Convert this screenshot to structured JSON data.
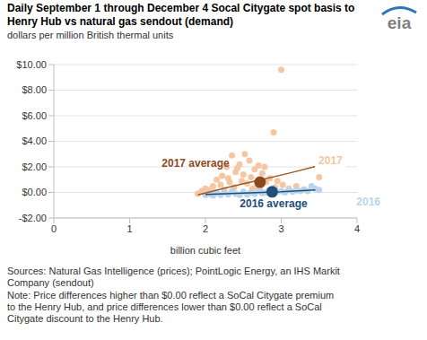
{
  "chart_data": {
    "type": "scatter",
    "title": "Daily September 1 through December 4 Socal Citygate spot basis to\nHenry Hub vs natural gas sendout (demand)",
    "subtitle": "dollars per million British thermal units",
    "logo": "eia",
    "x_label": "billion cubic feet",
    "xlim": [
      0,
      4
    ],
    "xticks": [
      0,
      1,
      2,
      3,
      4
    ],
    "ylim": [
      -2,
      10
    ],
    "yticks": [
      {
        "value": -2,
        "label": "-$2.00"
      },
      {
        "value": 0,
        "label": "$0.00"
      },
      {
        "value": 2,
        "label": "$2.00"
      },
      {
        "value": 4,
        "label": "$4.00"
      },
      {
        "value": 6,
        "label": "$6.00"
      },
      {
        "value": 8,
        "label": "$8.00"
      },
      {
        "value": 10,
        "label": "$10.00"
      }
    ],
    "grid": true,
    "series": [
      {
        "name": "2017",
        "color": "#f6c6a2",
        "name_at": [
          3.65,
          2.5
        ],
        "x": [
          1.9,
          1.95,
          2.0,
          2.05,
          2.1,
          2.12,
          2.15,
          2.2,
          2.22,
          2.25,
          2.28,
          2.3,
          2.32,
          2.35,
          2.38,
          2.4,
          2.42,
          2.45,
          2.48,
          2.5,
          2.52,
          2.55,
          2.58,
          2.6,
          2.62,
          2.65,
          2.68,
          2.7,
          2.72,
          2.75,
          2.78,
          2.8,
          2.85,
          2.9,
          2.92,
          2.95,
          3.0,
          3.02,
          3.1,
          3.2,
          3.3,
          3.5
        ],
        "values": [
          -0.1,
          0.1,
          0.3,
          0.2,
          0.5,
          0.0,
          1.0,
          0.6,
          1.3,
          0.2,
          2.0,
          1.1,
          0.8,
          2.9,
          0.4,
          1.6,
          1.9,
          2.2,
          0.9,
          1.4,
          3.0,
          0.7,
          2.5,
          1.2,
          0.3,
          1.8,
          0.5,
          2.1,
          0.2,
          1.5,
          2.0,
          0.8,
          1.1,
          4.7,
          0.4,
          0.9,
          9.6,
          0.6,
          0.3,
          0.5,
          0.2,
          1.2
        ],
        "trend": {
          "color": "#9a5a2c",
          "x": [
            1.9,
            2.3,
            2.7,
            3.1,
            3.5
          ],
          "values": [
            -0.2,
            0.4,
            0.95,
            1.5,
            2.1
          ]
        },
        "average": {
          "label": "2017 average",
          "color": "#8c4a1c",
          "x": 2.72,
          "y": 0.8,
          "label_at": [
            1.87,
            2.3
          ]
        }
      },
      {
        "name": "2016",
        "color": "#b9d4ec",
        "name_at": [
          4.15,
          -0.75
        ],
        "x": [
          2.0,
          2.05,
          2.1,
          2.15,
          2.2,
          2.25,
          2.3,
          2.35,
          2.4,
          2.45,
          2.5,
          2.55,
          2.6,
          2.65,
          2.7,
          2.75,
          2.8,
          2.85,
          2.9,
          2.95,
          3.0,
          3.05,
          3.1,
          3.15,
          3.2,
          3.25,
          3.3,
          3.35,
          3.4,
          3.45,
          3.5
        ],
        "values": [
          -0.2,
          -0.1,
          -0.25,
          -0.05,
          -0.2,
          0.0,
          -0.15,
          0.1,
          -0.1,
          -0.2,
          0.05,
          -0.15,
          0.0,
          -0.1,
          0.1,
          -0.05,
          0.0,
          0.15,
          -0.1,
          0.05,
          0.1,
          0.0,
          0.2,
          0.05,
          0.15,
          0.1,
          0.25,
          0.1,
          0.5,
          0.3,
          0.2
        ],
        "trend": {
          "color": "#1f4e79",
          "x": [
            2.0,
            2.5,
            3.0,
            3.45
          ],
          "values": [
            -0.15,
            -0.05,
            0.05,
            0.2
          ]
        },
        "average": {
          "label": "2016 average",
          "color": "#1f4e79",
          "x": 2.88,
          "y": 0.05,
          "label_at": [
            2.9,
            -0.85
          ]
        }
      }
    ],
    "sources": "Sources: Natural Gas Intelligence (prices); PointLogic Energy, an IHS Markit\nCompany (sendout)",
    "note": "Note: Price differences higher than $0.00 reflect a SoCal Citygate premium\nto the Henry Hub, and price differences lower than $0.00 reflect a SoCal\nCitygate discount to the Henry Hub."
  }
}
